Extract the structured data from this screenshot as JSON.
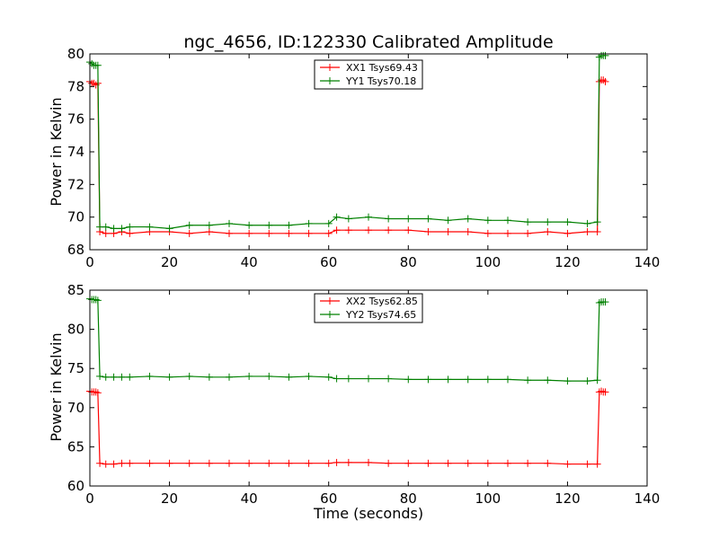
{
  "chart_data": [
    {
      "type": "line",
      "title": "ngc_4656, ID:122330 Calibrated Amplitude",
      "xlabel": "",
      "ylabel": "Power in Kelvin",
      "xlim": [
        0,
        140
      ],
      "ylim": [
        68,
        80
      ],
      "xticks": [
        "0",
        "20",
        "40",
        "60",
        "80",
        "100",
        "120",
        "140"
      ],
      "yticks": [
        "68",
        "70",
        "72",
        "74",
        "76",
        "78",
        "80"
      ],
      "legend_position": "top-center",
      "grid": false,
      "series": [
        {
          "name": "XX1 Tsys69.43",
          "color": "#ff0000",
          "marker": "plus",
          "points": [
            [
              0,
              78.3
            ],
            [
              0.5,
              78.2
            ],
            [
              1,
              78.2
            ],
            [
              1.5,
              78.1
            ],
            [
              2,
              78.2
            ],
            [
              2.5,
              69.1
            ],
            [
              4,
              69.0
            ],
            [
              6,
              69.0
            ],
            [
              8,
              69.1
            ],
            [
              10,
              69.0
            ],
            [
              15,
              69.1
            ],
            [
              20,
              69.1
            ],
            [
              25,
              69.0
            ],
            [
              30,
              69.1
            ],
            [
              35,
              69.0
            ],
            [
              40,
              69.0
            ],
            [
              45,
              69.0
            ],
            [
              50,
              69.0
            ],
            [
              55,
              69.0
            ],
            [
              60,
              69.0
            ],
            [
              62,
              69.2
            ],
            [
              65,
              69.2
            ],
            [
              70,
              69.2
            ],
            [
              75,
              69.2
            ],
            [
              80,
              69.2
            ],
            [
              85,
              69.1
            ],
            [
              90,
              69.1
            ],
            [
              95,
              69.1
            ],
            [
              100,
              69.0
            ],
            [
              105,
              69.0
            ],
            [
              110,
              69.0
            ],
            [
              115,
              69.1
            ],
            [
              120,
              69.0
            ],
            [
              125,
              69.1
            ],
            [
              127.5,
              69.1
            ],
            [
              128,
              78.3
            ],
            [
              128.5,
              78.4
            ],
            [
              129,
              78.4
            ],
            [
              129.5,
              78.3
            ]
          ]
        },
        {
          "name": "YY1 Tsys70.18",
          "color": "#008000",
          "marker": "plus",
          "points": [
            [
              0,
              79.5
            ],
            [
              0.5,
              79.4
            ],
            [
              1,
              79.3
            ],
            [
              1.5,
              79.3
            ],
            [
              2,
              79.3
            ],
            [
              2.5,
              69.4
            ],
            [
              4,
              69.4
            ],
            [
              6,
              69.3
            ],
            [
              8,
              69.3
            ],
            [
              10,
              69.4
            ],
            [
              15,
              69.4
            ],
            [
              20,
              69.3
            ],
            [
              25,
              69.5
            ],
            [
              30,
              69.5
            ],
            [
              35,
              69.6
            ],
            [
              40,
              69.5
            ],
            [
              45,
              69.5
            ],
            [
              50,
              69.5
            ],
            [
              55,
              69.6
            ],
            [
              60,
              69.6
            ],
            [
              62,
              70.0
            ],
            [
              65,
              69.9
            ],
            [
              70,
              70.0
            ],
            [
              75,
              69.9
            ],
            [
              80,
              69.9
            ],
            [
              85,
              69.9
            ],
            [
              90,
              69.8
            ],
            [
              95,
              69.9
            ],
            [
              100,
              69.8
            ],
            [
              105,
              69.8
            ],
            [
              110,
              69.7
            ],
            [
              115,
              69.7
            ],
            [
              120,
              69.7
            ],
            [
              125,
              69.6
            ],
            [
              127.5,
              69.7
            ],
            [
              128,
              79.8
            ],
            [
              128.5,
              79.9
            ],
            [
              129,
              79.9
            ],
            [
              129.5,
              79.9
            ]
          ]
        }
      ]
    },
    {
      "type": "line",
      "title": "",
      "xlabel": "Time (seconds)",
      "ylabel": "Power in Kelvin",
      "xlim": [
        0,
        140
      ],
      "ylim": [
        60,
        85
      ],
      "xticks": [
        "0",
        "20",
        "40",
        "60",
        "80",
        "100",
        "120",
        "140"
      ],
      "yticks": [
        "60",
        "65",
        "70",
        "75",
        "80",
        "85"
      ],
      "legend_position": "top-center",
      "grid": false,
      "series": [
        {
          "name": "XX2 Tsys62.85",
          "color": "#ff0000",
          "marker": "plus",
          "points": [
            [
              0,
              72.1
            ],
            [
              0.5,
              72.0
            ],
            [
              1,
              72.0
            ],
            [
              1.5,
              72.0
            ],
            [
              2,
              71.9
            ],
            [
              2.5,
              62.9
            ],
            [
              4,
              62.8
            ],
            [
              6,
              62.8
            ],
            [
              8,
              62.9
            ],
            [
              10,
              62.9
            ],
            [
              15,
              62.9
            ],
            [
              20,
              62.9
            ],
            [
              25,
              62.9
            ],
            [
              30,
              62.9
            ],
            [
              35,
              62.9
            ],
            [
              40,
              62.9
            ],
            [
              45,
              62.9
            ],
            [
              50,
              62.9
            ],
            [
              55,
              62.9
            ],
            [
              60,
              62.9
            ],
            [
              62,
              63.0
            ],
            [
              65,
              63.0
            ],
            [
              70,
              63.0
            ],
            [
              75,
              62.9
            ],
            [
              80,
              62.9
            ],
            [
              85,
              62.9
            ],
            [
              90,
              62.9
            ],
            [
              95,
              62.9
            ],
            [
              100,
              62.9
            ],
            [
              105,
              62.9
            ],
            [
              110,
              62.9
            ],
            [
              115,
              62.9
            ],
            [
              120,
              62.8
            ],
            [
              125,
              62.8
            ],
            [
              127.5,
              62.8
            ],
            [
              128,
              72.0
            ],
            [
              128.5,
              72.1
            ],
            [
              129,
              72.0
            ],
            [
              129.5,
              72.0
            ]
          ]
        },
        {
          "name": "YY2 Tsys74.65",
          "color": "#008000",
          "marker": "plus",
          "points": [
            [
              0,
              83.9
            ],
            [
              0.5,
              83.8
            ],
            [
              1,
              83.8
            ],
            [
              1.5,
              83.8
            ],
            [
              2,
              83.7
            ],
            [
              2.5,
              74.0
            ],
            [
              4,
              73.9
            ],
            [
              6,
              73.9
            ],
            [
              8,
              73.9
            ],
            [
              10,
              73.9
            ],
            [
              15,
              74.0
            ],
            [
              20,
              73.9
            ],
            [
              25,
              74.0
            ],
            [
              30,
              73.9
            ],
            [
              35,
              73.9
            ],
            [
              40,
              74.0
            ],
            [
              45,
              74.0
            ],
            [
              50,
              73.9
            ],
            [
              55,
              74.0
            ],
            [
              60,
              73.9
            ],
            [
              62,
              73.7
            ],
            [
              65,
              73.7
            ],
            [
              70,
              73.7
            ],
            [
              75,
              73.7
            ],
            [
              80,
              73.6
            ],
            [
              85,
              73.6
            ],
            [
              90,
              73.6
            ],
            [
              95,
              73.6
            ],
            [
              100,
              73.6
            ],
            [
              105,
              73.6
            ],
            [
              110,
              73.5
            ],
            [
              115,
              73.5
            ],
            [
              120,
              73.4
            ],
            [
              125,
              73.4
            ],
            [
              127.5,
              73.5
            ],
            [
              128,
              83.4
            ],
            [
              128.5,
              83.5
            ],
            [
              129,
              83.5
            ],
            [
              129.5,
              83.5
            ]
          ]
        }
      ]
    }
  ]
}
